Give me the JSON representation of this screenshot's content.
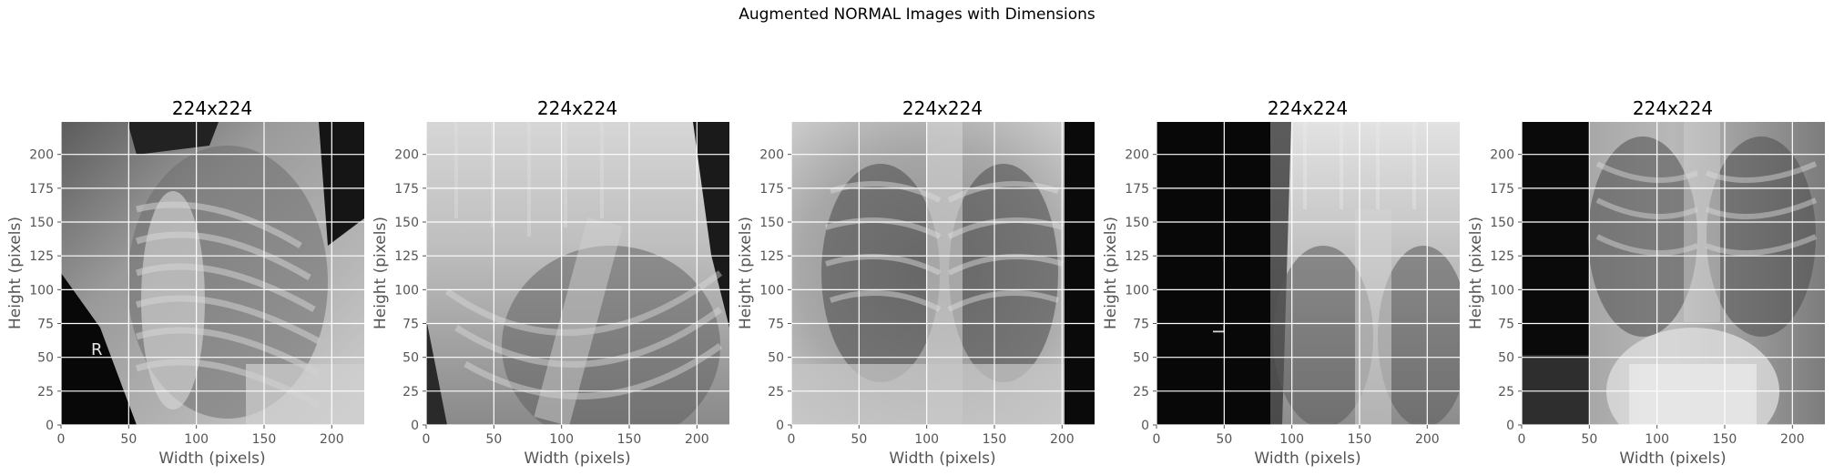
{
  "figure": {
    "title": "Augmented NORMAL Images with Dimensions"
  },
  "axes": {
    "xlabel": "Width (pixels)",
    "ylabel": "Height (pixels)",
    "xticks": [
      "0",
      "50",
      "100",
      "150",
      "200"
    ],
    "yticks": [
      "0",
      "25",
      "50",
      "75",
      "100",
      "125",
      "150",
      "175",
      "200"
    ],
    "extent": [
      0,
      224
    ]
  },
  "panels": [
    {
      "title": "224x224",
      "image": "rotated chest x-ray, large black region on right, marker letter R on left",
      "marker": "R"
    },
    {
      "title": "224x224",
      "image": "rotated and stretched chest x-ray with smeared bright top band"
    },
    {
      "title": "224x224",
      "image": "frontal chest x-ray, black band on right edge"
    },
    {
      "title": "224x224",
      "image": "shifted chest x-ray, black band on left, streaked top, marker letter L",
      "marker": "L"
    },
    {
      "title": "224x224",
      "image": "vertically flipped chest x-ray, black band on left"
    }
  ],
  "colors": {
    "grid": "#ffffff",
    "tick_text": "#555555",
    "title_text": "#000000"
  }
}
